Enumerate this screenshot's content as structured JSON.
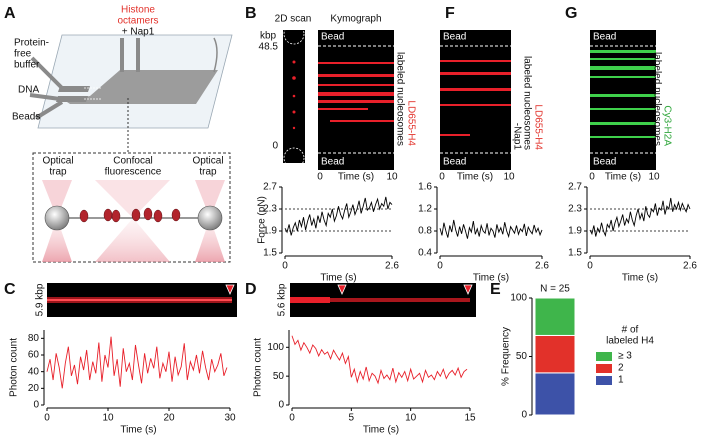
{
  "panel_labels": [
    "A",
    "B",
    "C",
    "D",
    "E",
    "F",
    "G"
  ],
  "diagram": {
    "histone": [
      "Histone",
      "octamers"
    ],
    "nap1": "+ Nap1",
    "buffer": [
      "Protein-",
      "free",
      "buffer"
    ],
    "dna": "DNA",
    "beads": "Beads",
    "trap": [
      "Optical",
      "trap"
    ],
    "confocal": [
      "Confocal",
      "fluorescence"
    ]
  },
  "kymographs": {
    "scan_title": "2D scan",
    "kymo_title": "Kymograph",
    "unit": "kbp",
    "top": 48.5,
    "bottom": 0,
    "bead": "Bead",
    "time_start": 0,
    "time_end": 10,
    "time_label": "Time (s)",
    "B_labels": [
      "LD655-H4",
      "labeled nucleosomes"
    ],
    "F_labels": [
      "LD655-H4",
      "labeled nucleosomes",
      "-Nap1"
    ],
    "G_labels": [
      "Cy3-H2A",
      "labeled nucleosomes"
    ],
    "C_length": "5.9 kbp",
    "D_length": "5.6 kbp"
  },
  "chart_data": [
    {
      "type": "line",
      "x_label": "Time (s)",
      "y_label": "Force (pN)",
      "xlim": [
        0,
        2.6
      ],
      "xticks": [
        0,
        2.6
      ],
      "ylim": [
        1.5,
        2.7
      ],
      "yticks": [
        1.5,
        1.9,
        2.3,
        2.7
      ],
      "ref_lines": [
        1.9,
        2.3
      ],
      "color": "#000000",
      "x": [
        0,
        0.05,
        0.1,
        0.15,
        0.2,
        0.25,
        0.3,
        0.35,
        0.4,
        0.45,
        0.5,
        0.55,
        0.6,
        0.65,
        0.7,
        0.75,
        0.8,
        0.85,
        0.9,
        0.95,
        1,
        1.05,
        1.1,
        1.15,
        1.2,
        1.25,
        1.3,
        1.35,
        1.4,
        1.45,
        1.5,
        1.55,
        1.6,
        1.65,
        1.7,
        1.75,
        1.8,
        1.85,
        1.9,
        1.95,
        2,
        2.05,
        2.1,
        2.15,
        2.2,
        2.25,
        2.3,
        2.35,
        2.4,
        2.45,
        2.5,
        2.55,
        2.6
      ],
      "values": [
        1.95,
        1.88,
        2.02,
        1.82,
        1.96,
        2.05,
        1.9,
        2.1,
        1.98,
        2.15,
        1.92,
        2.08,
        2.2,
        2.0,
        2.12,
        1.95,
        2.18,
        2.05,
        2.25,
        2.1,
        2.0,
        2.22,
        2.15,
        2.3,
        2.08,
        2.18,
        2.35,
        2.2,
        2.12,
        2.28,
        2.4,
        2.15,
        2.25,
        2.38,
        2.2,
        2.3,
        2.45,
        2.22,
        2.35,
        2.5,
        2.28,
        2.32,
        2.42,
        2.25,
        2.38,
        2.48,
        2.3,
        2.4,
        2.35,
        2.52,
        2.3,
        2.42,
        2.38
      ]
    },
    {
      "type": "line",
      "x_label": "Time (s)",
      "xlim": [
        0,
        2.6
      ],
      "xticks": [
        0,
        2.6
      ],
      "ylim": [
        0.4,
        1.6
      ],
      "yticks": [
        0.4,
        0.8,
        1.2,
        1.6
      ],
      "color": "#000000",
      "x": [
        0,
        0.05,
        0.1,
        0.15,
        0.2,
        0.25,
        0.3,
        0.35,
        0.4,
        0.45,
        0.5,
        0.55,
        0.6,
        0.65,
        0.7,
        0.75,
        0.8,
        0.85,
        0.9,
        0.95,
        1,
        1.05,
        1.1,
        1.15,
        1.2,
        1.25,
        1.3,
        1.35,
        1.4,
        1.45,
        1.5,
        1.55,
        1.6,
        1.65,
        1.7,
        1.75,
        1.8,
        1.85,
        1.9,
        1.95,
        2,
        2.05,
        2.1,
        2.15,
        2.2,
        2.25,
        2.3,
        2.35,
        2.4,
        2.45,
        2.5,
        2.55,
        2.6
      ],
      "values": [
        0.85,
        0.72,
        0.95,
        0.8,
        0.68,
        0.9,
        0.78,
        1.0,
        0.82,
        0.7,
        0.88,
        0.75,
        0.92,
        0.8,
        0.66,
        0.86,
        0.78,
        0.98,
        0.74,
        0.84,
        0.7,
        0.9,
        0.8,
        0.76,
        0.94,
        0.72,
        0.85,
        0.8,
        0.68,
        0.92,
        0.78,
        0.86,
        0.74,
        0.96,
        0.8,
        0.7,
        0.88,
        0.82,
        0.76,
        0.9,
        0.74,
        0.84,
        0.79,
        0.93,
        0.71,
        0.87,
        0.8,
        0.75,
        0.91,
        0.78,
        0.85,
        0.73,
        0.82
      ]
    },
    {
      "type": "line",
      "x_label": "Time (s)",
      "xlim": [
        0,
        2.6
      ],
      "xticks": [
        0,
        2.6
      ],
      "ylim": [
        1.5,
        2.7
      ],
      "yticks": [
        1.5,
        1.9,
        2.3,
        2.7
      ],
      "ref_lines": [
        1.9,
        2.3
      ],
      "color": "#000000",
      "x": [
        0,
        0.05,
        0.1,
        0.15,
        0.2,
        0.25,
        0.3,
        0.35,
        0.4,
        0.45,
        0.5,
        0.55,
        0.6,
        0.65,
        0.7,
        0.75,
        0.8,
        0.85,
        0.9,
        0.95,
        1,
        1.05,
        1.1,
        1.15,
        1.2,
        1.25,
        1.3,
        1.35,
        1.4,
        1.45,
        1.5,
        1.55,
        1.6,
        1.65,
        1.7,
        1.75,
        1.8,
        1.85,
        1.9,
        1.95,
        2,
        2.05,
        2.1,
        2.15,
        2.2,
        2.25,
        2.3,
        2.35,
        2.4,
        2.45,
        2.5,
        2.55,
        2.6
      ],
      "values": [
        1.92,
        1.85,
        2.0,
        1.8,
        1.95,
        1.88,
        2.05,
        1.9,
        1.82,
        2.02,
        1.96,
        2.1,
        1.9,
        2.05,
        2.15,
        1.98,
        2.08,
        2.2,
        2.0,
        2.12,
        2.05,
        2.25,
        2.1,
        2.0,
        2.18,
        2.3,
        2.12,
        2.22,
        2.08,
        2.35,
        2.2,
        2.15,
        2.3,
        2.25,
        2.4,
        2.18,
        2.32,
        2.28,
        2.45,
        2.2,
        2.35,
        2.3,
        2.5,
        2.25,
        2.38,
        2.3,
        2.42,
        2.28,
        2.4,
        2.32,
        2.25,
        2.38,
        2.3
      ]
    },
    {
      "type": "line",
      "x_label": "Time (s)",
      "y_label": "Photon count",
      "xlim": [
        0,
        30
      ],
      "xticks": [
        0,
        10,
        20,
        30
      ],
      "ylim": [
        0,
        90
      ],
      "yticks": [
        0,
        20,
        40,
        60,
        80
      ],
      "color": "#e8202a",
      "x": [
        0,
        0.5,
        1,
        1.5,
        2,
        2.5,
        3,
        3.5,
        4,
        4.5,
        5,
        5.5,
        6,
        6.5,
        7,
        7.5,
        8,
        8.5,
        9,
        9.5,
        10,
        10.5,
        11,
        11.5,
        12,
        12.5,
        13,
        13.5,
        14,
        14.5,
        15,
        15.5,
        16,
        16.5,
        17,
        17.5,
        18,
        18.5,
        19,
        19.5,
        20,
        20.5,
        21,
        21.5,
        22,
        22.5,
        23,
        23.5,
        24,
        24.5,
        25,
        25.5,
        26,
        26.5,
        27,
        27.5,
        28,
        28.5,
        29,
        29.5
      ],
      "values": [
        40,
        55,
        30,
        62,
        45,
        20,
        50,
        70,
        35,
        48,
        25,
        58,
        42,
        66,
        30,
        52,
        38,
        75,
        28,
        60,
        45,
        82,
        35,
        55,
        22,
        68,
        40,
        50,
        30,
        72,
        48,
        26,
        62,
        38,
        56,
        44,
        70,
        32,
        50,
        40,
        64,
        28,
        58,
        36,
        46,
        74,
        30,
        52,
        42,
        60,
        38,
        65,
        45,
        30,
        55,
        40,
        48,
        62,
        35,
        45
      ]
    },
    {
      "type": "line",
      "x_label": "Time (s)",
      "y_label": "Photon count",
      "xlim": [
        0,
        15
      ],
      "xticks": [
        0,
        5,
        10,
        15
      ],
      "ylim": [
        0,
        130
      ],
      "yticks": [
        0,
        50,
        100
      ],
      "color": "#e8202a",
      "x": [
        0,
        0.25,
        0.5,
        0.75,
        1,
        1.25,
        1.5,
        1.75,
        2,
        2.25,
        2.5,
        2.75,
        3,
        3.25,
        3.5,
        3.75,
        4,
        4.25,
        4.5,
        4.75,
        5,
        5.25,
        5.5,
        5.75,
        6,
        6.25,
        6.5,
        6.75,
        7,
        7.25,
        7.5,
        7.75,
        8,
        8.25,
        8.5,
        8.75,
        9,
        9.25,
        9.5,
        9.75,
        10,
        10.25,
        10.5,
        10.75,
        11,
        11.25,
        11.5,
        11.75,
        12,
        12.25,
        12.5,
        12.75,
        13,
        13.25,
        13.5,
        13.75,
        14,
        14.25,
        14.5,
        14.75
      ],
      "values": [
        120,
        105,
        112,
        95,
        108,
        100,
        90,
        104,
        98,
        85,
        96,
        88,
        92,
        80,
        95,
        86,
        78,
        90,
        72,
        84,
        48,
        62,
        40,
        58,
        45,
        66,
        42,
        55,
        50,
        38,
        60,
        46,
        52,
        44,
        64,
        40,
        56,
        48,
        58,
        42,
        62,
        45,
        50,
        55,
        40,
        60,
        48,
        52,
        44,
        58,
        50,
        62,
        46,
        55,
        60,
        52,
        64,
        48,
        58,
        62
      ]
    },
    {
      "type": "bar",
      "annotation": "N = 25",
      "y_label": "% Frequency",
      "ylim": [
        0,
        100
      ],
      "yticks": [
        0,
        50,
        100
      ],
      "legend_title": [
        "# of",
        "labeled H4"
      ],
      "series": [
        {
          "name": "1",
          "color": "#3d52a8",
          "values": [
            36
          ]
        },
        {
          "name": "2",
          "color": "#e2312a",
          "values": [
            32
          ]
        },
        {
          "name": "≥ 3",
          "color": "#3fb54b",
          "values": [
            32
          ]
        }
      ]
    }
  ]
}
